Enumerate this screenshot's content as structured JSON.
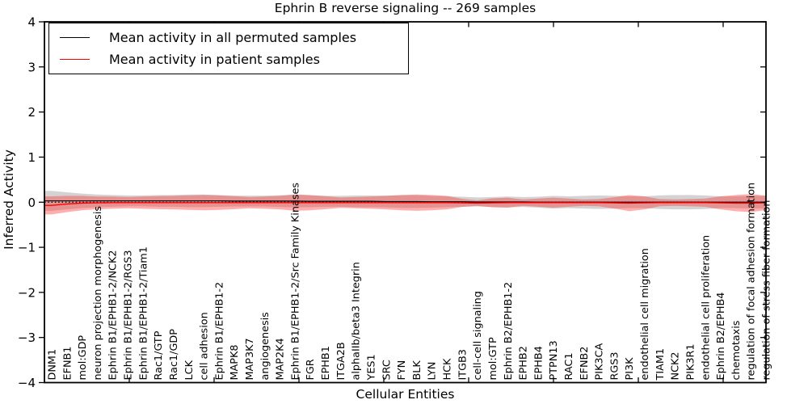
{
  "figure": {
    "title": "Ephrin B reverse signaling -- 269 samples",
    "xlabel": "Cellular Entities",
    "ylabel": "Inferred Activity"
  },
  "legend": {
    "items": [
      {
        "label": "Mean activity in all permuted samples",
        "color": "#000000"
      },
      {
        "label": "Mean activity in patient samples",
        "color": "#ff0000"
      }
    ]
  },
  "chart_data": {
    "type": "line",
    "title": "Ephrin B reverse signaling -- 269 samples",
    "xlabel": "Cellular Entities",
    "ylabel": "Inferred Activity",
    "ylim": [
      -4,
      4
    ],
    "ytick_values": [
      4,
      3,
      2,
      1,
      0,
      -1,
      -2,
      -3,
      -4
    ],
    "ytick_labels": [
      "4",
      "3",
      "2",
      "1",
      "0",
      "−1",
      "−2",
      "−3",
      "−4"
    ],
    "grid": false,
    "legend_position": "upper left",
    "zero_line": {
      "style": "dotted",
      "color": "#000000",
      "y": 0
    },
    "band_colors": {
      "permuted": "rgba(110,110,110,0.30)",
      "patient": "rgba(255,40,40,0.38)"
    },
    "categories": [
      "DNM1",
      "EFNB1",
      "mol:GDP",
      "neuron projection morphogenesis",
      "Ephrin B1/EPHB1-2/NCK2",
      "Ephrin B1/EPHB1-2/RGS3",
      "Ephrin B1/EPHB1-2/Tiam1",
      "Rac1/GTP",
      "Rac1/GDP",
      "LCK",
      "cell adhesion",
      "Ephrin B1/EPHB1-2",
      "MAPK8",
      "MAP3K7",
      "angiogenesis",
      "MAP2K4",
      "Ephrin B1/EPHB1-2/Src Family Kinases",
      "FGR",
      "EPHB1",
      "ITGA2B",
      "alphaIIb/beta3 Integrin",
      "YES1",
      "SRC",
      "FYN",
      "BLK",
      "LYN",
      "HCK",
      "ITGB3",
      "cell-cell signaling",
      "mol:GTP",
      "Ephrin B2/EPHB1-2",
      "EPHB2",
      "EPHB4",
      "PTPN13",
      "RAC1",
      "EFNB2",
      "PIK3CA",
      "RGS3",
      "PI3K",
      "endothelial cell migration",
      "TIAM1",
      "NCK2",
      "PIK3R1",
      "endothelial cell proliferation",
      "Ephrin B2/EPHB4",
      "chemotaxis",
      "regulation of focal adhesion formation",
      "regulation of stress fiber formation"
    ],
    "series": [
      {
        "name": "Mean activity in all permuted samples",
        "color": "#000000",
        "values": [
          0.03,
          0.03,
          0.03,
          0.03,
          0.03,
          0.03,
          0.03,
          0.03,
          0.03,
          0.03,
          0.03,
          0.03,
          0.025,
          0.025,
          0.025,
          0.025,
          0.025,
          0.02,
          0.02,
          0.02,
          0.02,
          0.02,
          0.015,
          0.015,
          0.015,
          0.01,
          0.01,
          0.01,
          0.005,
          0.005,
          0.005,
          0.005,
          0,
          0,
          0,
          0,
          0,
          0,
          0,
          0,
          0,
          0,
          0,
          0,
          0,
          0,
          0,
          0
        ]
      },
      {
        "name": "Mean activity in patient samples",
        "color": "#ff0000",
        "values": [
          -0.07,
          -0.04,
          -0.02,
          -0.015,
          -0.01,
          -0.01,
          -0.01,
          -0.01,
          -0.01,
          -0.01,
          -0.01,
          -0.01,
          -0.01,
          -0.01,
          -0.01,
          -0.01,
          -0.01,
          -0.01,
          -0.01,
          -0.01,
          -0.01,
          -0.01,
          -0.01,
          -0.01,
          -0.01,
          -0.01,
          -0.01,
          -0.015,
          -0.02,
          -0.015,
          -0.01,
          -0.01,
          -0.01,
          -0.01,
          -0.01,
          -0.01,
          -0.01,
          -0.015,
          -0.02,
          -0.015,
          -0.01,
          -0.01,
          -0.01,
          -0.01,
          -0.015,
          -0.02,
          -0.02,
          -0.015
        ]
      }
    ],
    "bands": [
      {
        "name": "permuted std band",
        "center_series": 0,
        "half_widths": [
          0.22,
          0.19,
          0.16,
          0.14,
          0.13,
          0.12,
          0.12,
          0.13,
          0.13,
          0.14,
          0.14,
          0.13,
          0.12,
          0.12,
          0.12,
          0.13,
          0.14,
          0.13,
          0.12,
          0.12,
          0.13,
          0.13,
          0.13,
          0.14,
          0.14,
          0.13,
          0.12,
          0.11,
          0.1,
          0.11,
          0.12,
          0.11,
          0.12,
          0.14,
          0.13,
          0.14,
          0.15,
          0.14,
          0.13,
          0.13,
          0.15,
          0.16,
          0.16,
          0.15,
          0.13,
          0.13,
          0.14,
          0.14
        ]
      },
      {
        "name": "patient std band",
        "center_series": 1,
        "half_widths": [
          0.2,
          0.18,
          0.16,
          0.14,
          0.135,
          0.125,
          0.135,
          0.145,
          0.15,
          0.16,
          0.17,
          0.16,
          0.145,
          0.125,
          0.135,
          0.15,
          0.18,
          0.17,
          0.145,
          0.115,
          0.125,
          0.135,
          0.15,
          0.17,
          0.18,
          0.17,
          0.15,
          0.09,
          0.06,
          0.1,
          0.11,
          0.07,
          0.09,
          0.11,
          0.09,
          0.07,
          0.08,
          0.125,
          0.18,
          0.145,
          0.08,
          0.07,
          0.08,
          0.09,
          0.145,
          0.18,
          0.2,
          0.16
        ]
      }
    ]
  }
}
